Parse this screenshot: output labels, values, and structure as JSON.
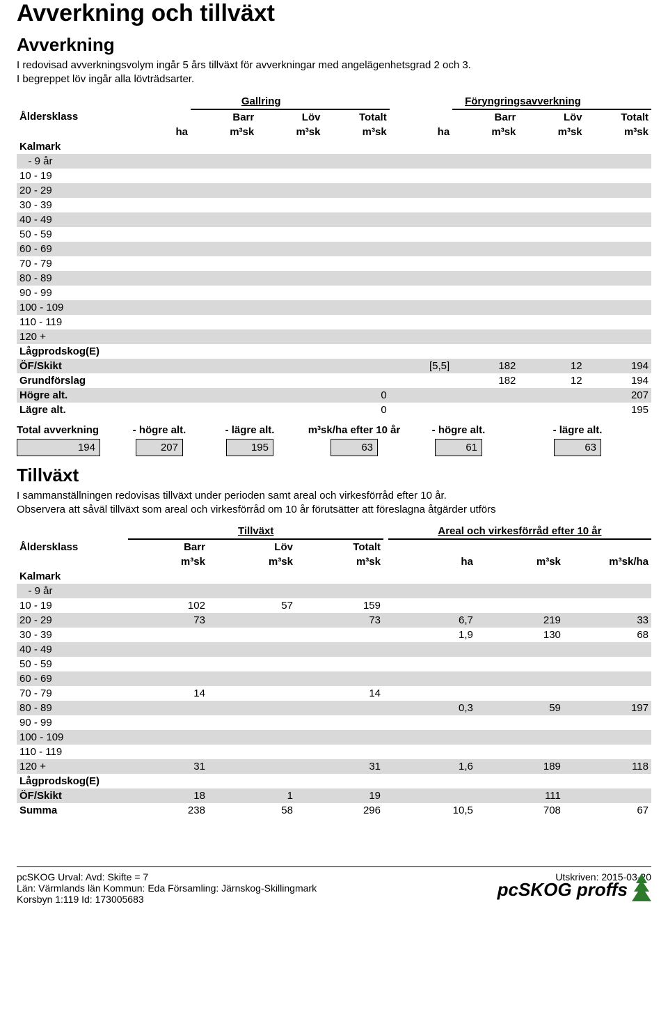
{
  "title1": "Avverkning och tillväxt",
  "h2a": "Avverkning",
  "intro1": "I redovisad avverkningsvolym ingår 5 års tillväxt för avverkningar med angelägenhetsgrad 2 och 3.",
  "intro2": "I begreppet löv ingår alla lövträdsarter.",
  "t1": {
    "group_left": "Gallring",
    "group_right": "Föryngringsavverkning",
    "aldersklass": "Åldersklass",
    "cols_left": [
      "ha",
      "Barr m³sk",
      "Löv m³sk",
      "Totalt m³sk"
    ],
    "cols_right": [
      "ha",
      "Barr m³sk",
      "Löv m³sk",
      "Totalt m³sk"
    ],
    "col_label_top": {
      "barr": "Barr",
      "lov": "Löv",
      "totalt": "Totalt"
    },
    "col_label_bot": {
      "ha": "ha",
      "m3sk": "m³sk"
    },
    "rows": [
      {
        "label": "Kalmark",
        "bold": true
      },
      {
        "label": "- 9 år",
        "indent": true
      },
      {
        "label": "10 - 19"
      },
      {
        "label": "20 - 29"
      },
      {
        "label": "30 - 39"
      },
      {
        "label": "40 - 49"
      },
      {
        "label": "50 - 59"
      },
      {
        "label": "60 - 69"
      },
      {
        "label": "70 - 79"
      },
      {
        "label": "80 - 89"
      },
      {
        "label": "90 - 99"
      },
      {
        "label": "100 - 109"
      },
      {
        "label": "110 - 119"
      },
      {
        "label": "120 +"
      },
      {
        "label": "Lågprodskog(E)",
        "bold": true
      },
      {
        "label": "ÖF/Skikt",
        "bold": true,
        "r_ha": "[5,5]",
        "r_barr": "182",
        "r_lov": "12",
        "r_tot": "194"
      },
      {
        "label": "Grundförslag",
        "bold": true,
        "r_barr": "182",
        "r_lov": "12",
        "r_tot": "194"
      },
      {
        "label": "Högre alt.",
        "bold": true,
        "l_tot": "0",
        "r_tot": "207"
      },
      {
        "label": "Lägre alt.",
        "bold": true,
        "l_tot": "0",
        "r_tot": "195"
      }
    ],
    "alt_color": "#d9d9d9"
  },
  "summary": {
    "labels": [
      "Total avverkning",
      "- högre alt.",
      "- lägre alt.",
      "m³sk/ha efter 10 år",
      "- högre alt.",
      "- lägre alt."
    ],
    "values": [
      "194",
      "207",
      "195",
      "63",
      "61",
      "63"
    ]
  },
  "h2b": "Tillväxt",
  "intro3": "I sammanställningen redovisas tillväxt under perioden samt areal och virkesförråd efter 10 år.",
  "intro4": "Observera att såväl tillväxt som areal och virkesförråd om 10 år förutsätter att föreslagna åtgärder utförs",
  "t2": {
    "group_left": "Tillväxt",
    "group_right": "Areal och virkesförråd efter 10 år",
    "aldersklass": "Åldersklass",
    "col_label_top": {
      "barr": "Barr",
      "lov": "Löv",
      "totalt": "Totalt"
    },
    "col_label_bot": {
      "m3sk": "m³sk",
      "ha": "ha",
      "m3skha": "m³sk/ha"
    },
    "rows": [
      {
        "label": "Kalmark",
        "bold": true
      },
      {
        "label": "- 9 år",
        "indent": true
      },
      {
        "label": "10 - 19",
        "barr": "102",
        "lov": "57",
        "tot": "159"
      },
      {
        "label": "20 - 29",
        "barr": "73",
        "tot": "73",
        "ha": "6,7",
        "m3": "219",
        "m3ha": "33"
      },
      {
        "label": "30 - 39",
        "ha": "1,9",
        "m3": "130",
        "m3ha": "68"
      },
      {
        "label": "40 - 49"
      },
      {
        "label": "50 - 59"
      },
      {
        "label": "60 - 69"
      },
      {
        "label": "70 - 79",
        "barr": "14",
        "tot": "14"
      },
      {
        "label": "80 - 89",
        "ha": "0,3",
        "m3": "59",
        "m3ha": "197"
      },
      {
        "label": "90 - 99"
      },
      {
        "label": "100 - 109"
      },
      {
        "label": "110 - 119"
      },
      {
        "label": "120 +",
        "barr": "31",
        "tot": "31",
        "ha": "1,6",
        "m3": "189",
        "m3ha": "118"
      },
      {
        "label": "Lågprodskog(E)",
        "bold": true
      },
      {
        "label": "ÖF/Skikt",
        "bold": true,
        "barr": "18",
        "lov": "1",
        "tot": "19",
        "m3": "111"
      },
      {
        "label": "Summa",
        "bold": true,
        "barr": "238",
        "lov": "58",
        "tot": "296",
        "ha": "10,5",
        "m3": "708",
        "m3ha": "67"
      }
    ]
  },
  "footer": {
    "urval": "pcSKOG Urval: Avd: Skifte = 7",
    "lan": "Län: Värmlands län   Kommun: Eda   Församling: Järnskog-Skillingmark",
    "fastighet": "Korsbyn 1:119 Id: 173005683",
    "utskriven": "Utskriven: 2015-03-20",
    "logo_text": "pcSKOG proffs",
    "tree_color": "#2d7a2d"
  }
}
